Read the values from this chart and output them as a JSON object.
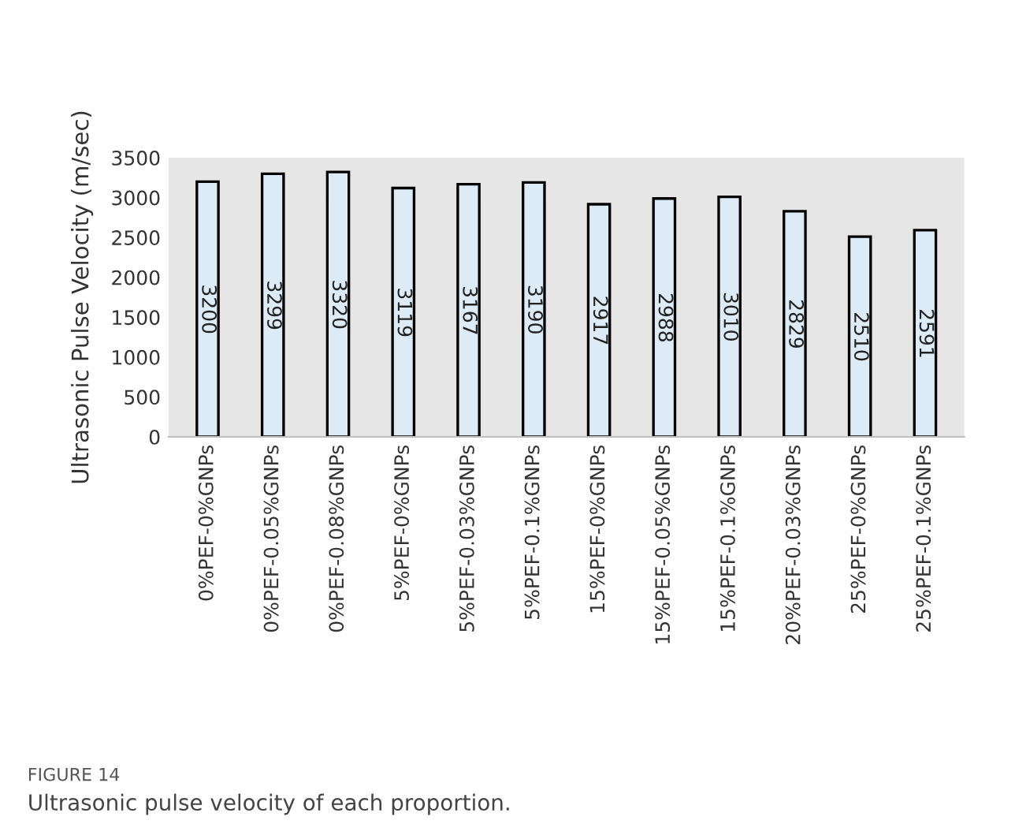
{
  "chart_data": {
    "type": "bar",
    "ylabel": "Ultrasonic Pulse Velocity (m/sec)",
    "categories": [
      "0%PEF-0%GNPs",
      "0%PEF-0.05%GNPs",
      "0%PEF-0.08%GNPs",
      "5%PEF-0%GNPs",
      "5%PEF-0.03%GNPs",
      "5%PEF-0.1%GNPs",
      "15%PEF-0%GNPs",
      "15%PEF-0.05%GNPs",
      "15%PEF-0.1%GNPs",
      "20%PEF-0.03%GNPs",
      "25%PEF-0%GNPs",
      "25%PEF-0.1%GNPs"
    ],
    "values": [
      3200,
      3299,
      3320,
      3119,
      3167,
      3190,
      2917,
      2988,
      3010,
      2829,
      2510,
      2591
    ],
    "color": "#ddebf7",
    "data_labels": true,
    "ylim": [
      0,
      3500
    ],
    "yticks": [
      0,
      500,
      1000,
      1500,
      2000,
      2500,
      3000,
      3500
    ],
    "grid": false,
    "annotations": [
      "FIGURE 14",
      "Ultrasonic pulse velocity of each proportion."
    ]
  }
}
